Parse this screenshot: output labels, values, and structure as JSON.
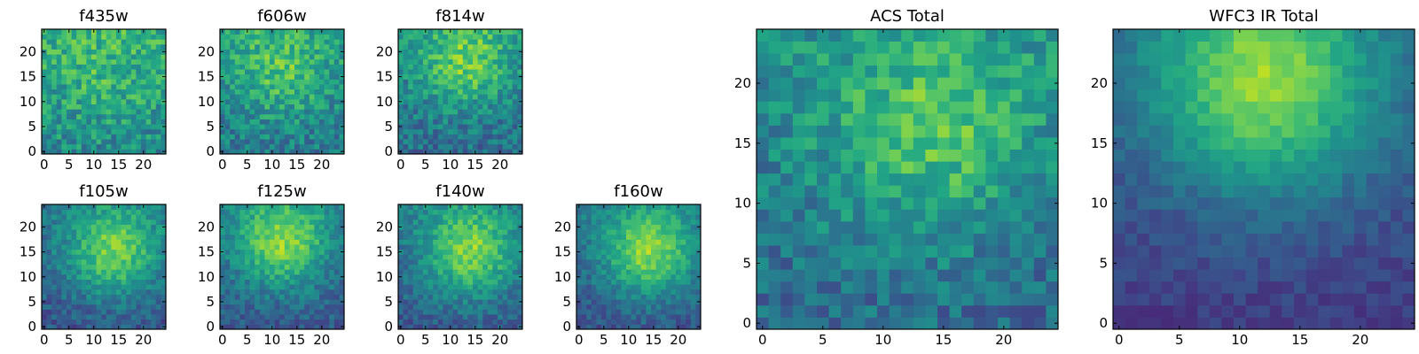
{
  "chart_data": [
    {
      "type": "heatmap",
      "title": "f435w",
      "n": 25,
      "xticks": [
        0,
        5,
        10,
        15,
        20
      ],
      "yticks": [
        0,
        5,
        10,
        15,
        20
      ],
      "colormap": "viridis",
      "colorbar": false
    },
    {
      "type": "heatmap",
      "title": "f606w",
      "n": 25,
      "xticks": [
        0,
        5,
        10,
        15,
        20
      ],
      "yticks": [
        0,
        5,
        10,
        15,
        20
      ],
      "colormap": "viridis",
      "colorbar": false
    },
    {
      "type": "heatmap",
      "title": "f814w",
      "n": 25,
      "xticks": [
        0,
        5,
        10,
        15,
        20
      ],
      "yticks": [
        0,
        5,
        10,
        15,
        20
      ],
      "colormap": "viridis",
      "colorbar": false
    },
    {
      "type": "heatmap",
      "title": "f105w",
      "n": 25,
      "xticks": [
        0,
        5,
        10,
        15,
        20
      ],
      "yticks": [
        0,
        5,
        10,
        15,
        20
      ],
      "colormap": "viridis",
      "colorbar": false
    },
    {
      "type": "heatmap",
      "title": "f125w",
      "n": 25,
      "xticks": [
        0,
        5,
        10,
        15,
        20
      ],
      "yticks": [
        0,
        5,
        10,
        15,
        20
      ],
      "colormap": "viridis",
      "colorbar": false
    },
    {
      "type": "heatmap",
      "title": "f140w",
      "n": 25,
      "xticks": [
        0,
        5,
        10,
        15,
        20
      ],
      "yticks": [
        0,
        5,
        10,
        15,
        20
      ],
      "colormap": "viridis",
      "colorbar": false
    },
    {
      "type": "heatmap",
      "title": "f160w",
      "n": 25,
      "xticks": [
        0,
        5,
        10,
        15,
        20
      ],
      "yticks": [
        0,
        5,
        10,
        15,
        20
      ],
      "colormap": "viridis",
      "colorbar": false
    },
    {
      "type": "heatmap",
      "title": "ACS Total",
      "n": 25,
      "xticks": [
        0,
        5,
        10,
        15,
        20
      ],
      "yticks": [
        0,
        5,
        10,
        15,
        20
      ],
      "colormap": "viridis",
      "colorbar": false
    },
    {
      "type": "heatmap",
      "title": "WFC3 IR Total",
      "n": 25,
      "xticks": [
        0,
        5,
        10,
        15,
        20
      ],
      "yticks": [
        0,
        5,
        10,
        15,
        20
      ],
      "colormap": "viridis",
      "colorbar": false
    }
  ]
}
